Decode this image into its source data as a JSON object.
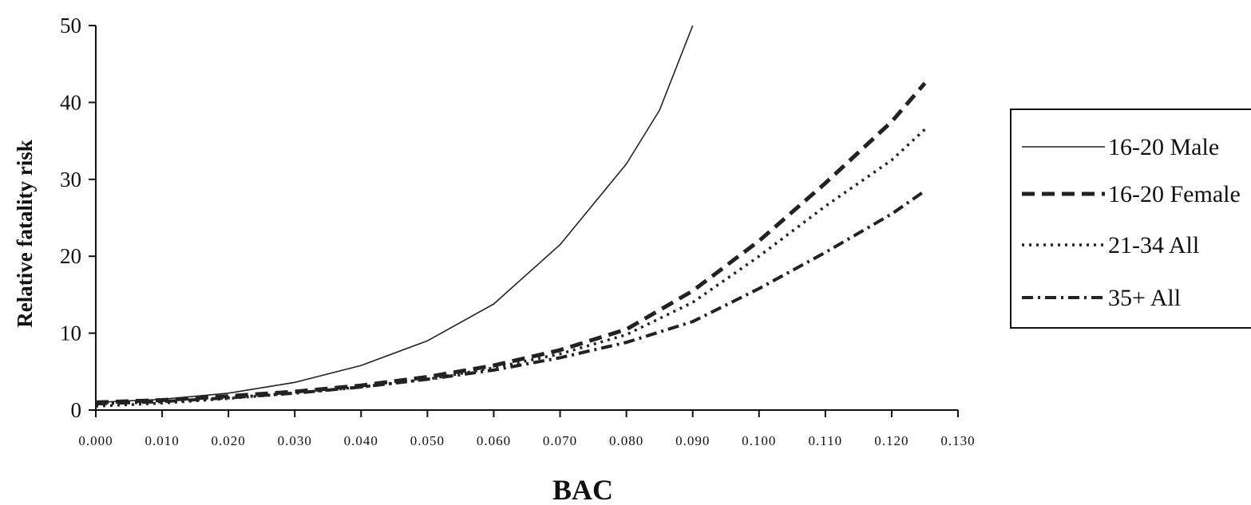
{
  "chart_data": {
    "type": "line",
    "xlabel": "BAC",
    "ylabel": "Relative fatality risk",
    "xlim": [
      0,
      0.13
    ],
    "ylim": [
      0,
      50
    ],
    "x_ticks": [
      "0.000",
      "0.010",
      "0.020",
      "0.030",
      "0.040",
      "0.050",
      "0.060",
      "0.070",
      "0.080",
      "0.090",
      "0.100",
      "0.110",
      "0.120",
      "0.130"
    ],
    "y_ticks": [
      "0",
      "10",
      "20",
      "30",
      "40",
      "50"
    ],
    "grid": false,
    "legend_position": "right",
    "series": [
      {
        "name": "16-20 Male",
        "style": "solid",
        "x": [
          0.0,
          0.01,
          0.02,
          0.03,
          0.04,
          0.05,
          0.06,
          0.07,
          0.08,
          0.085,
          0.09
        ],
        "y": [
          1.0,
          1.4,
          2.2,
          3.6,
          5.8,
          9.0,
          13.8,
          21.5,
          32.0,
          39.0,
          50.0
        ]
      },
      {
        "name": "16-20 Female",
        "style": "dashed",
        "x": [
          0.0,
          0.01,
          0.02,
          0.03,
          0.04,
          0.05,
          0.06,
          0.07,
          0.08,
          0.09,
          0.1,
          0.11,
          0.12,
          0.125
        ],
        "y": [
          1.0,
          1.3,
          1.8,
          2.4,
          3.2,
          4.3,
          5.8,
          7.8,
          10.5,
          15.5,
          22.0,
          29.5,
          37.5,
          42.5
        ]
      },
      {
        "name": "21-34 All",
        "style": "dotted",
        "x": [
          0.0,
          0.01,
          0.02,
          0.03,
          0.04,
          0.05,
          0.06,
          0.07,
          0.08,
          0.09,
          0.1,
          0.11,
          0.12,
          0.125
        ],
        "y": [
          0.5,
          0.9,
          1.5,
          2.2,
          3.0,
          4.0,
          5.5,
          7.3,
          9.8,
          14.0,
          20.0,
          26.5,
          32.5,
          36.5
        ]
      },
      {
        "name": "35+ All",
        "style": "dashdot",
        "x": [
          0.0,
          0.01,
          0.02,
          0.03,
          0.04,
          0.05,
          0.06,
          0.07,
          0.08,
          0.09,
          0.1,
          0.11,
          0.12,
          0.125
        ],
        "y": [
          0.8,
          1.1,
          1.6,
          2.2,
          3.0,
          4.0,
          5.2,
          6.8,
          8.8,
          11.5,
          15.8,
          20.5,
          25.5,
          28.5
        ]
      }
    ]
  }
}
